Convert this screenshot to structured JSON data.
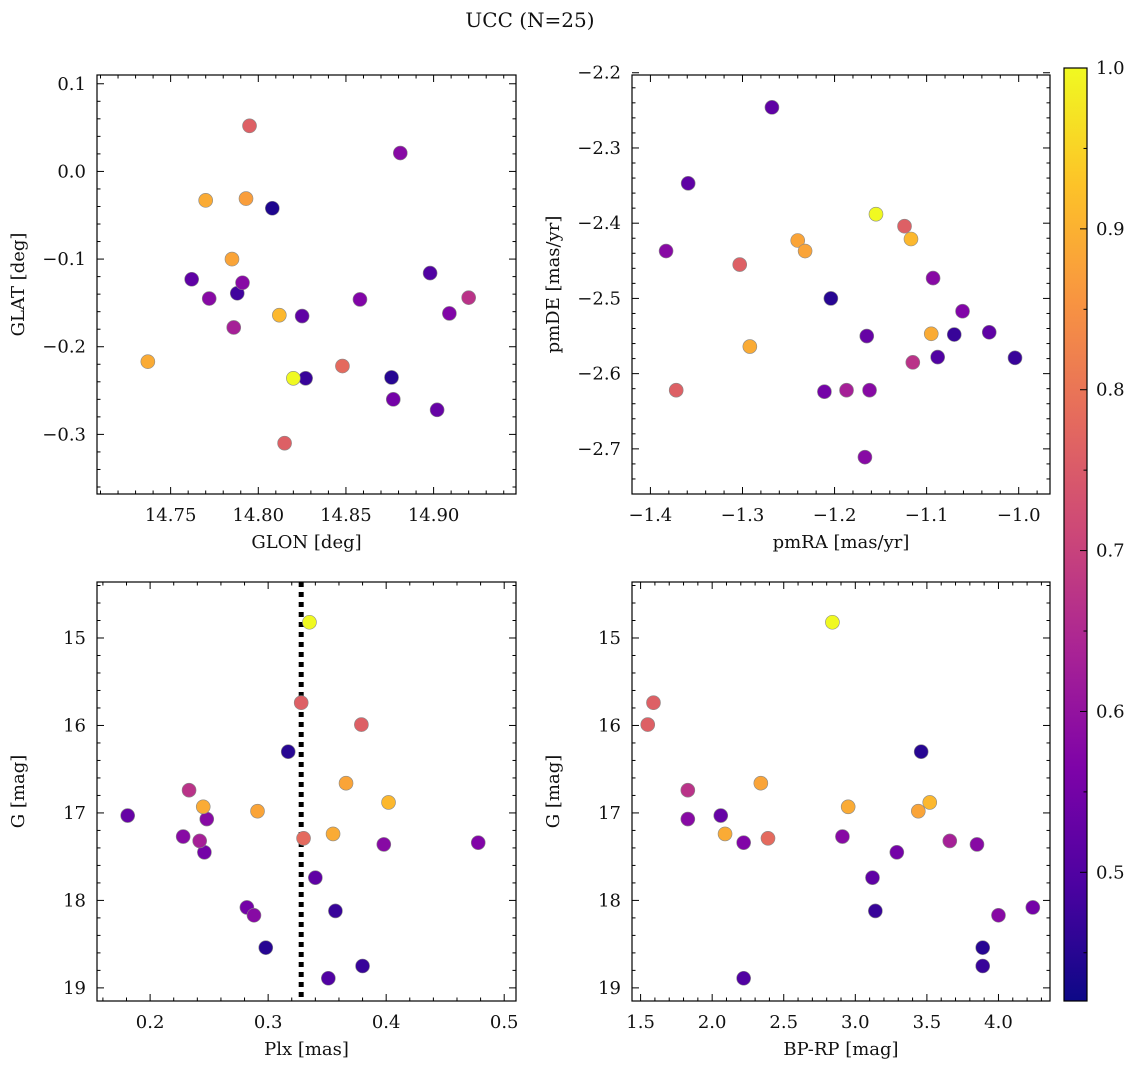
{
  "figure": {
    "title": "UCC (N=25)"
  },
  "colorbar": {
    "min": 0.42,
    "max": 1.0,
    "ticks": [
      0.5,
      0.6,
      0.7,
      0.8,
      0.9,
      1.0
    ],
    "tick_labels": [
      "0.5",
      "0.6",
      "0.7",
      "0.8",
      "0.9",
      "1.0"
    ],
    "colormap": "plasma"
  },
  "chart_data": [
    {
      "type": "scatter",
      "xlabel": "GLON [deg]",
      "ylabel": "GLAT [deg]",
      "xlim": [
        14.708,
        14.947
      ],
      "ylim": [
        -0.368,
        0.11
      ],
      "xticks": [
        14.75,
        14.8,
        14.85,
        14.9
      ],
      "xtick_labels": [
        "14.75",
        "14.80",
        "14.85",
        "14.90"
      ],
      "yticks": [
        -0.3,
        -0.2,
        -0.1,
        0.0,
        0.1
      ],
      "ytick_labels": [
        "−0.3",
        "−0.2",
        "−0.1",
        "0.0",
        "0.1"
      ],
      "y_inverted": false,
      "points": [
        {
          "x": 14.737,
          "y": -0.217,
          "c": 0.89
        },
        {
          "x": 14.762,
          "y": -0.123,
          "c": 0.52
        },
        {
          "x": 14.77,
          "y": -0.033,
          "c": 0.89
        },
        {
          "x": 14.772,
          "y": -0.145,
          "c": 0.58
        },
        {
          "x": 14.785,
          "y": -0.1,
          "c": 0.88
        },
        {
          "x": 14.786,
          "y": -0.178,
          "c": 0.63
        },
        {
          "x": 14.788,
          "y": -0.139,
          "c": 0.48
        },
        {
          "x": 14.791,
          "y": -0.127,
          "c": 0.58
        },
        {
          "x": 14.793,
          "y": -0.031,
          "c": 0.87
        },
        {
          "x": 14.795,
          "y": 0.052,
          "c": 0.76
        },
        {
          "x": 14.808,
          "y": -0.042,
          "c": 0.44
        },
        {
          "x": 14.812,
          "y": -0.164,
          "c": 0.91
        },
        {
          "x": 14.815,
          "y": -0.31,
          "c": 0.76
        },
        {
          "x": 14.82,
          "y": -0.236,
          "c": 1.0
        },
        {
          "x": 14.825,
          "y": -0.165,
          "c": 0.52
        },
        {
          "x": 14.827,
          "y": -0.236,
          "c": 0.47
        },
        {
          "x": 14.848,
          "y": -0.222,
          "c": 0.78
        },
        {
          "x": 14.858,
          "y": -0.146,
          "c": 0.57
        },
        {
          "x": 14.876,
          "y": -0.235,
          "c": 0.45
        },
        {
          "x": 14.877,
          "y": -0.26,
          "c": 0.55
        },
        {
          "x": 14.881,
          "y": 0.021,
          "c": 0.58
        },
        {
          "x": 14.898,
          "y": -0.116,
          "c": 0.5
        },
        {
          "x": 14.902,
          "y": -0.272,
          "c": 0.53
        },
        {
          "x": 14.909,
          "y": -0.162,
          "c": 0.57
        },
        {
          "x": 14.92,
          "y": -0.144,
          "c": 0.67
        }
      ]
    },
    {
      "type": "scatter",
      "xlabel": "pmRA [mas/yr]",
      "ylabel": "pmDE [mas/yr]",
      "xlim": [
        -1.42,
        -0.966
      ],
      "ylim": [
        -2.76,
        -2.203
      ],
      "xticks": [
        -1.4,
        -1.3,
        -1.2,
        -1.1,
        -1.0
      ],
      "xtick_labels": [
        "−1.4",
        "−1.3",
        "−1.2",
        "−1.1",
        "−1.0"
      ],
      "yticks": [
        -2.7,
        -2.6,
        -2.5,
        -2.4,
        -2.3,
        -2.2
      ],
      "ytick_labels": [
        "−2.7",
        "−2.6",
        "−2.5",
        "−2.4",
        "−2.3",
        "−2.2"
      ],
      "y_inverted": false,
      "points": [
        {
          "x": -1.383,
          "y": -2.437,
          "c": 0.58
        },
        {
          "x": -1.372,
          "y": -2.622,
          "c": 0.76
        },
        {
          "x": -1.359,
          "y": -2.347,
          "c": 0.52
        },
        {
          "x": -1.303,
          "y": -2.455,
          "c": 0.76
        },
        {
          "x": -1.292,
          "y": -2.564,
          "c": 0.89
        },
        {
          "x": -1.268,
          "y": -2.246,
          "c": 0.52
        },
        {
          "x": -1.24,
          "y": -2.423,
          "c": 0.88
        },
        {
          "x": -1.232,
          "y": -2.437,
          "c": 0.88
        },
        {
          "x": -1.211,
          "y": -2.624,
          "c": 0.55
        },
        {
          "x": -1.204,
          "y": -2.5,
          "c": 0.45
        },
        {
          "x": -1.187,
          "y": -2.622,
          "c": 0.63
        },
        {
          "x": -1.167,
          "y": -2.711,
          "c": 0.58
        },
        {
          "x": -1.165,
          "y": -2.55,
          "c": 0.53
        },
        {
          "x": -1.162,
          "y": -2.622,
          "c": 0.58
        },
        {
          "x": -1.155,
          "y": -2.388,
          "c": 1.0
        },
        {
          "x": -1.124,
          "y": -2.404,
          "c": 0.76
        },
        {
          "x": -1.117,
          "y": -2.421,
          "c": 0.91
        },
        {
          "x": -1.115,
          "y": -2.585,
          "c": 0.67
        },
        {
          "x": -1.095,
          "y": -2.547,
          "c": 0.89
        },
        {
          "x": -1.093,
          "y": -2.473,
          "c": 0.58
        },
        {
          "x": -1.088,
          "y": -2.578,
          "c": 0.5
        },
        {
          "x": -1.07,
          "y": -2.548,
          "c": 0.47
        },
        {
          "x": -1.061,
          "y": -2.517,
          "c": 0.57
        },
        {
          "x": -1.032,
          "y": -2.545,
          "c": 0.52
        },
        {
          "x": -1.004,
          "y": -2.579,
          "c": 0.47
        }
      ]
    },
    {
      "type": "scatter",
      "xlabel": "Plx [mas]",
      "ylabel": "G [mag]",
      "xlim": [
        0.155,
        0.51
      ],
      "ylim": [
        14.36,
        19.15
      ],
      "xticks": [
        0.2,
        0.3,
        0.4,
        0.5
      ],
      "xtick_labels": [
        "0.2",
        "0.3",
        "0.4",
        "0.5"
      ],
      "yticks": [
        15,
        16,
        17,
        18,
        19
      ],
      "ytick_labels": [
        "15",
        "16",
        "17",
        "18",
        "19"
      ],
      "y_inverted": true,
      "reference_line": {
        "x": 0.328,
        "style": "dotted",
        "color": "#000000"
      },
      "points": [
        {
          "x": 0.181,
          "y": 17.03,
          "c": 0.53
        },
        {
          "x": 0.228,
          "y": 17.27,
          "c": 0.58
        },
        {
          "x": 0.233,
          "y": 16.74,
          "c": 0.67
        },
        {
          "x": 0.242,
          "y": 17.32,
          "c": 0.63
        },
        {
          "x": 0.245,
          "y": 16.93,
          "c": 0.89
        },
        {
          "x": 0.246,
          "y": 17.45,
          "c": 0.55
        },
        {
          "x": 0.248,
          "y": 17.07,
          "c": 0.58
        },
        {
          "x": 0.282,
          "y": 18.08,
          "c": 0.55
        },
        {
          "x": 0.288,
          "y": 18.17,
          "c": 0.58
        },
        {
          "x": 0.291,
          "y": 16.98,
          "c": 0.88
        },
        {
          "x": 0.298,
          "y": 18.54,
          "c": 0.45
        },
        {
          "x": 0.317,
          "y": 16.3,
          "c": 0.45
        },
        {
          "x": 0.328,
          "y": 15.74,
          "c": 0.76
        },
        {
          "x": 0.33,
          "y": 17.29,
          "c": 0.78
        },
        {
          "x": 0.335,
          "y": 14.82,
          "c": 1.0
        },
        {
          "x": 0.34,
          "y": 17.74,
          "c": 0.52
        },
        {
          "x": 0.351,
          "y": 18.89,
          "c": 0.5
        },
        {
          "x": 0.355,
          "y": 17.24,
          "c": 0.89
        },
        {
          "x": 0.357,
          "y": 18.12,
          "c": 0.47
        },
        {
          "x": 0.366,
          "y": 16.66,
          "c": 0.88
        },
        {
          "x": 0.379,
          "y": 15.99,
          "c": 0.76
        },
        {
          "x": 0.38,
          "y": 18.75,
          "c": 0.47
        },
        {
          "x": 0.398,
          "y": 17.36,
          "c": 0.58
        },
        {
          "x": 0.402,
          "y": 16.88,
          "c": 0.91
        },
        {
          "x": 0.478,
          "y": 17.34,
          "c": 0.57
        }
      ]
    },
    {
      "type": "scatter",
      "xlabel": "BP-RP [mag]",
      "ylabel": "G [mag]",
      "xlim": [
        1.44,
        4.36
      ],
      "ylim": [
        14.36,
        19.15
      ],
      "xticks": [
        1.5,
        2.0,
        2.5,
        3.0,
        3.5,
        4.0
      ],
      "xtick_labels": [
        "1.5",
        "2.0",
        "2.5",
        "3.0",
        "3.5",
        "4.0"
      ],
      "yticks": [
        15,
        16,
        17,
        18,
        19
      ],
      "ytick_labels": [
        "15",
        "16",
        "17",
        "18",
        "19"
      ],
      "y_inverted": true,
      "points": [
        {
          "x": 1.55,
          "y": 15.99,
          "c": 0.76
        },
        {
          "x": 1.59,
          "y": 15.74,
          "c": 0.76
        },
        {
          "x": 1.83,
          "y": 16.74,
          "c": 0.67
        },
        {
          "x": 1.83,
          "y": 17.07,
          "c": 0.58
        },
        {
          "x": 2.06,
          "y": 17.03,
          "c": 0.53
        },
        {
          "x": 2.09,
          "y": 17.24,
          "c": 0.89
        },
        {
          "x": 2.22,
          "y": 17.34,
          "c": 0.57
        },
        {
          "x": 2.22,
          "y": 18.89,
          "c": 0.5
        },
        {
          "x": 2.34,
          "y": 16.66,
          "c": 0.88
        },
        {
          "x": 2.39,
          "y": 17.29,
          "c": 0.78
        },
        {
          "x": 2.84,
          "y": 14.82,
          "c": 1.0
        },
        {
          "x": 2.91,
          "y": 17.27,
          "c": 0.58
        },
        {
          "x": 2.95,
          "y": 16.93,
          "c": 0.89
        },
        {
          "x": 3.12,
          "y": 17.74,
          "c": 0.52
        },
        {
          "x": 3.14,
          "y": 18.12,
          "c": 0.47
        },
        {
          "x": 3.29,
          "y": 17.45,
          "c": 0.55
        },
        {
          "x": 3.44,
          "y": 16.98,
          "c": 0.88
        },
        {
          "x": 3.46,
          "y": 16.3,
          "c": 0.45
        },
        {
          "x": 3.52,
          "y": 16.88,
          "c": 0.91
        },
        {
          "x": 3.66,
          "y": 17.32,
          "c": 0.63
        },
        {
          "x": 3.85,
          "y": 17.36,
          "c": 0.58
        },
        {
          "x": 3.89,
          "y": 18.54,
          "c": 0.45
        },
        {
          "x": 3.89,
          "y": 18.75,
          "c": 0.47
        },
        {
          "x": 4.0,
          "y": 18.17,
          "c": 0.58
        },
        {
          "x": 4.24,
          "y": 18.08,
          "c": 0.55
        }
      ]
    }
  ]
}
